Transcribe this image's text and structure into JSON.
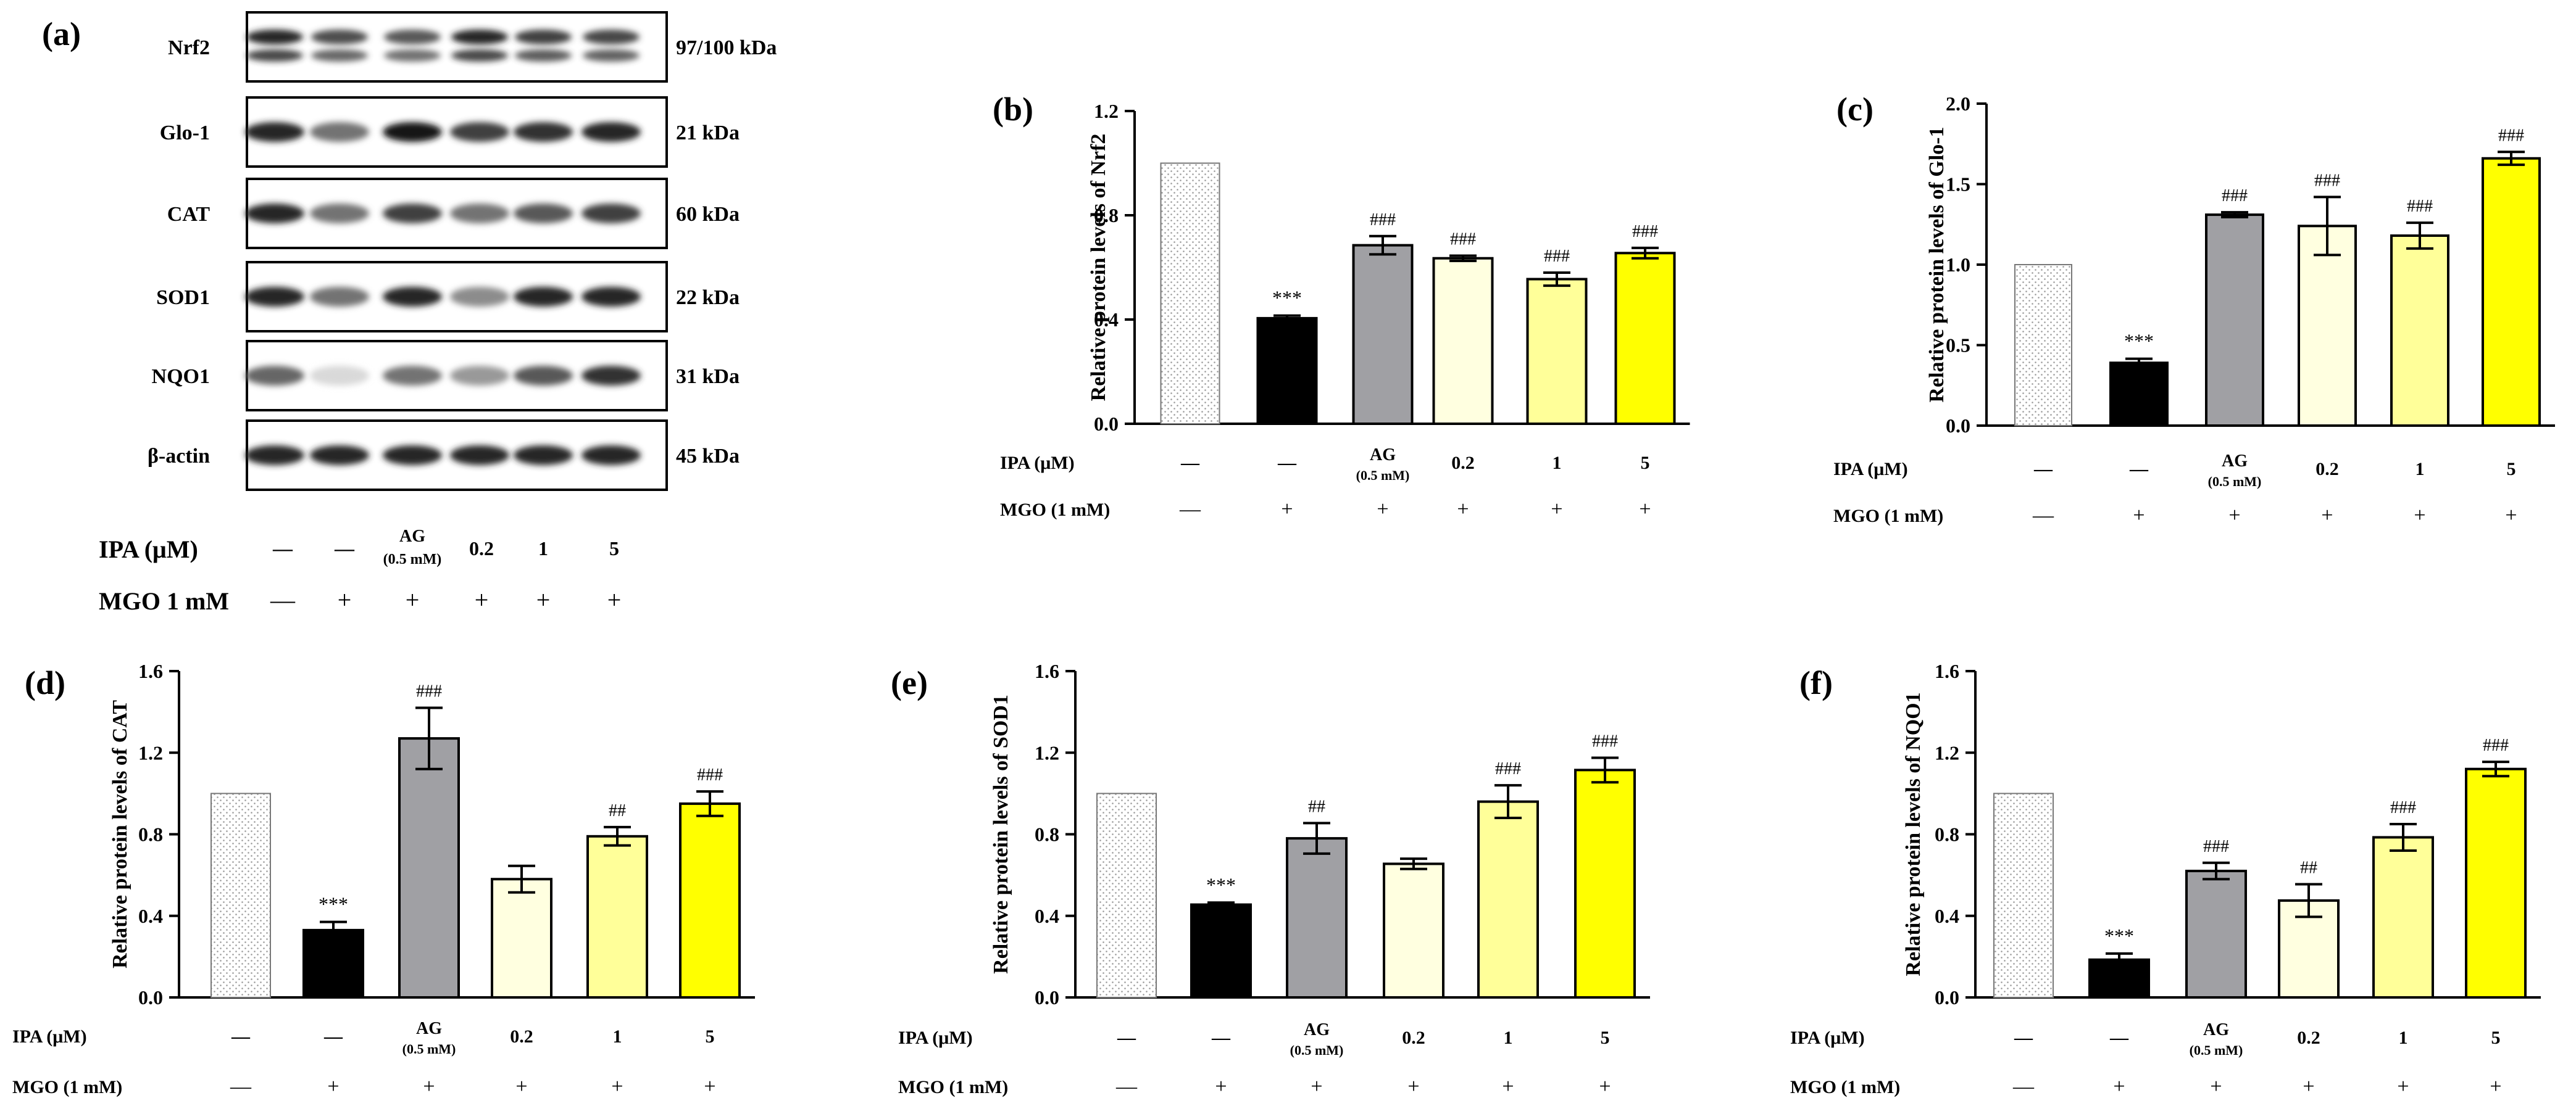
{
  "blot": {
    "label": "(a)",
    "proteins": [
      {
        "name": "Nrf2",
        "size": "97/100 kDa",
        "intensity": [
          0.85,
          0.7,
          0.65,
          0.85,
          0.75,
          0.72
        ],
        "double": true
      },
      {
        "name": "Glo-1",
        "size": "21 kDa",
        "intensity": [
          0.85,
          0.55,
          0.9,
          0.75,
          0.8,
          0.85
        ],
        "double": false
      },
      {
        "name": "CAT",
        "size": "60 kDa",
        "intensity": [
          0.85,
          0.55,
          0.75,
          0.55,
          0.65,
          0.75
        ],
        "double": false
      },
      {
        "name": "SOD1",
        "size": "22 kDa",
        "intensity": [
          0.85,
          0.55,
          0.85,
          0.45,
          0.85,
          0.85
        ],
        "double": false
      },
      {
        "name": "NQO1",
        "size": "31 kDa",
        "intensity": [
          0.6,
          0.15,
          0.55,
          0.4,
          0.65,
          0.8
        ],
        "double": false
      },
      {
        "name": "β-actin",
        "size": "45 kDa",
        "intensity": [
          0.85,
          0.85,
          0.85,
          0.85,
          0.85,
          0.85
        ],
        "double": false
      }
    ],
    "ipa_label": "IPA (μM)",
    "mgo_label": "MGO 1 mM",
    "ipa_values": [
      "—",
      "—",
      "AG",
      "0.2",
      "1",
      "5"
    ],
    "ag_sub": "(0.5 mM)",
    "mgo_values": [
      "—",
      "+",
      "+",
      "+",
      "+",
      "+"
    ]
  },
  "conditions": {
    "ipa_label": "IPA (μM)",
    "mgo_label": "MGO (1 mM)",
    "ipa_values": [
      "—",
      "—",
      "AG",
      "0.2",
      "1",
      "5"
    ],
    "ag_sub": "(0.5 mM)",
    "mgo_values": [
      "—",
      "+",
      "+",
      "+",
      "+",
      "+"
    ]
  },
  "bar_colors": [
    "#ffffff",
    "#000000",
    "#a0a0a4",
    "#ffffe0",
    "#ffff99",
    "#ffff00"
  ],
  "chart_data": [
    {
      "panel": "(b)",
      "type": "bar",
      "ylabel": "Relative protein levels of  Nrf2",
      "ylim": [
        0,
        1.2
      ],
      "yticks": [
        "0.0",
        "0.4",
        "0.8",
        "1.2"
      ],
      "values": [
        1.0,
        0.405,
        0.685,
        0.635,
        0.555,
        0.655
      ],
      "errors": [
        0,
        0.01,
        0.035,
        0.01,
        0.025,
        0.02
      ],
      "annotations": [
        "",
        "***",
        "###",
        "###",
        "###",
        "###"
      ]
    },
    {
      "panel": "(c)",
      "type": "bar",
      "ylabel": "Relative protein levels of  Glo-1",
      "ylim": [
        0,
        2.0
      ],
      "yticks": [
        "0.0",
        "0.5",
        "1.0",
        "1.5",
        "2.0"
      ],
      "values": [
        1.0,
        0.39,
        1.31,
        1.24,
        1.18,
        1.66
      ],
      "errors": [
        0,
        0.025,
        0.015,
        0.18,
        0.08,
        0.04
      ],
      "annotations": [
        "",
        "***",
        "###",
        "###",
        "###",
        "###"
      ]
    },
    {
      "panel": "(d)",
      "type": "bar",
      "ylabel": "Relative protein levels of CAT",
      "ylim": [
        0,
        1.6
      ],
      "yticks": [
        "0.0",
        "0.4",
        "0.8",
        "1.2",
        "1.6"
      ],
      "values": [
        1.0,
        0.33,
        1.27,
        0.58,
        0.79,
        0.95
      ],
      "errors": [
        0,
        0.04,
        0.15,
        0.065,
        0.045,
        0.06
      ],
      "annotations": [
        "",
        "***",
        "###",
        "",
        "##",
        "###"
      ]
    },
    {
      "panel": "(e)",
      "type": "bar",
      "ylabel": "Relative protein levels of SOD1",
      "ylim": [
        0,
        1.6
      ],
      "yticks": [
        "0.0",
        "0.4",
        "0.8",
        "1.2",
        "1.6"
      ],
      "values": [
        1.0,
        0.455,
        0.78,
        0.655,
        0.96,
        1.115
      ],
      "errors": [
        0,
        0.01,
        0.075,
        0.025,
        0.08,
        0.06
      ],
      "annotations": [
        "",
        "***",
        "##",
        "",
        "###",
        "###"
      ]
    },
    {
      "panel": "(f)",
      "type": "bar",
      "ylabel": "Relative protein levels of NQO1",
      "ylim": [
        0,
        1.6
      ],
      "yticks": [
        "0.0",
        "0.4",
        "0.8",
        "1.2",
        "1.6"
      ],
      "values": [
        1.0,
        0.185,
        0.62,
        0.475,
        0.785,
        1.12
      ],
      "errors": [
        0,
        0.03,
        0.04,
        0.08,
        0.065,
        0.035
      ],
      "annotations": [
        "",
        "***",
        "###",
        "##",
        "###",
        "###"
      ]
    }
  ]
}
